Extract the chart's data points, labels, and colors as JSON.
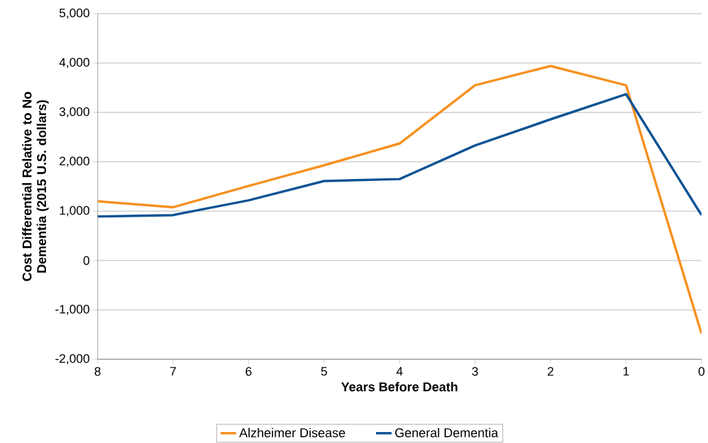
{
  "chart_data": {
    "type": "line",
    "xlabel": "Years Before Death",
    "ylabel": "Cost Differential Relative to No Dementia (2015 U.S. dollars)",
    "x": [
      8,
      7,
      6,
      5,
      4,
      3,
      2,
      1,
      0
    ],
    "series": [
      {
        "name": "Alzheimer Disease",
        "color": "#f7901e",
        "values": [
          1200,
          1080,
          1510,
          1930,
          2370,
          3550,
          3940,
          3550,
          -1480
        ]
      },
      {
        "name": "General Dementia",
        "color": "#0d5394",
        "values": [
          890,
          920,
          1220,
          1610,
          1650,
          2330,
          2860,
          3370,
          920
        ]
      }
    ],
    "xlim": [
      8,
      0
    ],
    "ylim": [
      -2000,
      5000
    ],
    "xticks": [
      8,
      7,
      6,
      5,
      4,
      3,
      2,
      1,
      0
    ],
    "yticks": [
      {
        "value": -2000,
        "label": "-2,000"
      },
      {
        "value": -1000,
        "label": "-1,000"
      },
      0,
      {
        "value": 1000,
        "label": "1,000"
      },
      {
        "value": 2000,
        "label": "2,000"
      },
      {
        "value": 3000,
        "label": "3,000"
      },
      {
        "value": 4000,
        "label": "4,000"
      },
      {
        "value": 5000,
        "label": "5,000"
      }
    ],
    "grid": "y",
    "legend": "bottom"
  }
}
